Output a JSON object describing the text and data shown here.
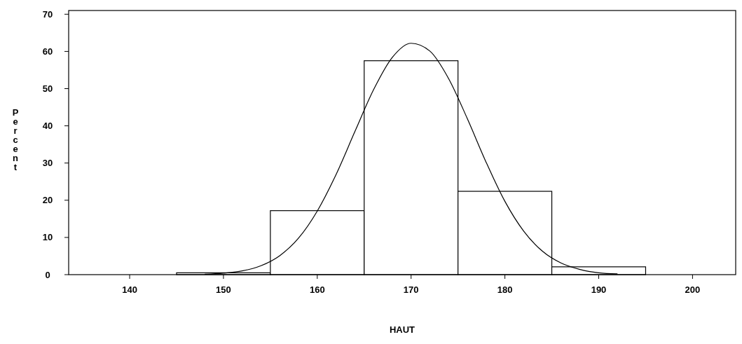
{
  "chart_data": {
    "type": "histogram",
    "xlabel": "HAUT",
    "ylabel": "Percent",
    "bins": [
      145,
      155,
      165,
      175,
      185,
      195
    ],
    "values": [
      0.5,
      17.2,
      57.5,
      22.4,
      2.1
    ],
    "color": "#ffffff",
    "xlim": [
      133.5,
      204.6
    ],
    "ylim": [
      0,
      71
    ],
    "xticks": [
      140,
      150,
      160,
      170,
      180,
      190,
      200
    ],
    "yticks": [
      0,
      10,
      20,
      30,
      40,
      50,
      60,
      70
    ],
    "grid": false,
    "marker": "none",
    "series": [
      {
        "type": "line",
        "color": "#000000",
        "x": [
          148,
          150,
          152,
          154,
          156,
          158,
          160,
          162,
          164,
          166,
          168,
          170,
          172,
          174,
          176,
          178,
          180,
          182,
          184,
          186,
          188,
          190,
          192
        ],
        "values": [
          0.1,
          0.4,
          1.0,
          2.4,
          5.1,
          9.8,
          17.1,
          26.9,
          38.4,
          49.7,
          58.4,
          62.2,
          60.1,
          52.7,
          41.9,
          30.2,
          19.7,
          11.7,
          6.3,
          3.1,
          1.4,
          0.5,
          0.2
        ]
      }
    ]
  }
}
